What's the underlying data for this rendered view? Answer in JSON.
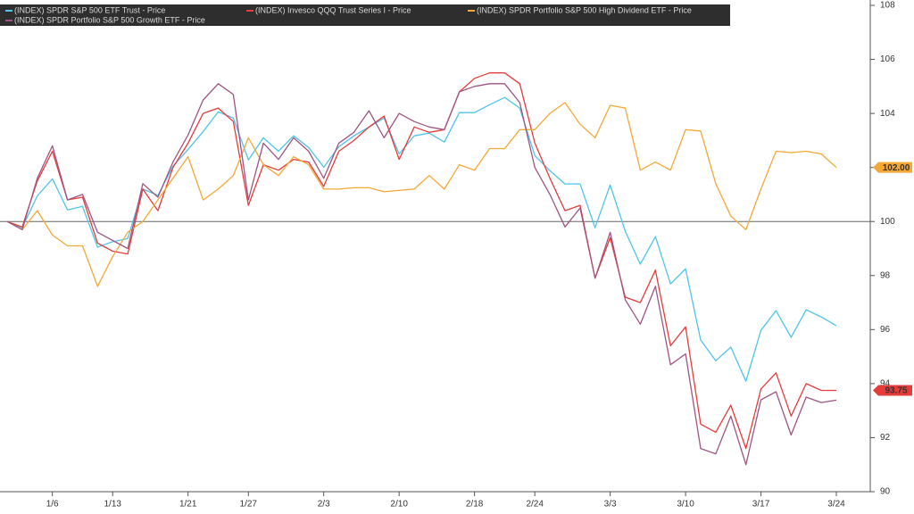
{
  "chart_data": {
    "type": "line",
    "categories": [
      null,
      null,
      null,
      "1/6",
      null,
      null,
      null,
      "1/13",
      null,
      null,
      null,
      null,
      "1/21",
      null,
      null,
      null,
      "1/27",
      null,
      null,
      null,
      null,
      "2/3",
      null,
      null,
      null,
      null,
      "2/10",
      null,
      null,
      null,
      null,
      "2/18",
      null,
      null,
      null,
      "2/24",
      null,
      null,
      null,
      null,
      "3/3",
      null,
      null,
      null,
      null,
      "3/10",
      null,
      null,
      null,
      null,
      "3/17",
      null,
      null,
      null,
      null,
      "3/24"
    ],
    "series": [
      {
        "name": "(INDEX) SPDR S&P 500 ETF Trust - Price",
        "color": "#4ec5ea",
        "values": [
          100,
          99.77,
          100.95,
          101.58,
          100.43,
          100.56,
          99.05,
          99.25,
          99.37,
          101.2,
          100.97,
          102.05,
          102.67,
          103.33,
          104.06,
          103.83,
          102.28,
          103.1,
          102.6,
          103.17,
          102.74,
          102.01,
          102.77,
          103.17,
          103.5,
          103.83,
          102.5,
          103.17,
          103.27,
          102.94,
          104.03,
          104.03,
          104.32,
          104.59,
          104.2,
          102.44,
          101.88,
          101.39,
          101.39,
          99.77,
          101.35,
          99.64,
          98.42,
          99.44,
          97.69,
          98.25,
          95.61,
          94.85,
          95.35,
          94.09,
          95.97,
          96.7,
          95.71,
          96.73,
          96.47,
          96.14
        ]
      },
      {
        "name": "(INDEX) Invesco QQQ Trust Series I - Price",
        "color": "#e63b3b",
        "values": [
          100,
          99.8,
          101.5,
          102.6,
          100.8,
          100.9,
          99.2,
          98.9,
          98.8,
          101.2,
          100.4,
          102.0,
          102.9,
          104.0,
          104.2,
          103.7,
          100.6,
          102.1,
          101.9,
          102.3,
          102.2,
          101.3,
          102.6,
          103.0,
          103.5,
          103.9,
          102.3,
          103.5,
          103.3,
          103.4,
          104.8,
          105.3,
          105.5,
          105.5,
          105.1,
          102.9,
          101.6,
          100.4,
          100.6,
          97.9,
          99.4,
          97.2,
          97.0,
          98.2,
          95.4,
          96.1,
          92.5,
          92.2,
          93.2,
          91.6,
          93.8,
          94.4,
          92.8,
          94.0,
          93.75,
          93.75
        ],
        "value_labels": [
          null,
          null,
          null,
          null,
          null,
          null,
          null,
          null,
          null,
          null,
          null,
          null,
          null,
          null,
          null,
          null,
          null,
          null,
          null,
          null,
          null,
          null,
          null,
          null,
          null,
          null,
          null,
          null,
          null,
          null,
          null,
          null,
          null,
          null,
          null,
          null,
          null,
          null,
          null,
          null,
          null,
          null,
          null,
          null,
          null,
          null,
          null,
          null,
          null,
          null,
          null,
          null,
          null,
          null,
          null,
          "93.75"
        ]
      },
      {
        "name": "(INDEX) SPDR Portfolio S&P 500 High Dividend ETF - Price",
        "color": "#f4a836",
        "values": [
          100,
          99.7,
          100.4,
          99.5,
          99.1,
          99.1,
          97.6,
          98.7,
          99.6,
          100.0,
          100.8,
          101.6,
          102.4,
          100.8,
          101.2,
          101.7,
          103.1,
          102.1,
          101.7,
          102.4,
          102.1,
          101.2,
          101.2,
          101.25,
          101.25,
          101.1,
          101.15,
          101.2,
          101.7,
          101.2,
          102.1,
          101.9,
          102.7,
          102.7,
          103.4,
          103.4,
          104.0,
          104.4,
          103.6,
          103.1,
          104.3,
          104.2,
          101.9,
          102.2,
          101.9,
          103.4,
          103.35,
          101.4,
          100.2,
          99.7,
          101.2,
          102.6,
          102.55,
          102.6,
          102.5,
          102.0
        ],
        "value_labels": [
          null,
          null,
          null,
          null,
          null,
          null,
          null,
          null,
          null,
          null,
          null,
          null,
          null,
          null,
          null,
          null,
          null,
          null,
          null,
          null,
          null,
          null,
          null,
          null,
          null,
          null,
          null,
          null,
          null,
          null,
          null,
          null,
          null,
          null,
          null,
          null,
          null,
          null,
          null,
          null,
          null,
          null,
          null,
          null,
          null,
          null,
          null,
          null,
          null,
          null,
          null,
          null,
          null,
          null,
          null,
          "102.00"
        ]
      },
      {
        "name": "(INDEX) SPDR Portfolio S&P 500 Growth ETF - Price",
        "color": "#9e5582",
        "values": [
          100,
          99.7,
          101.6,
          102.8,
          100.8,
          101.0,
          99.6,
          99.3,
          99.0,
          101.4,
          100.9,
          102.2,
          103.2,
          104.5,
          105.1,
          104.7,
          100.8,
          102.9,
          102.3,
          103.1,
          102.6,
          101.6,
          102.9,
          103.3,
          104.1,
          103.1,
          104.0,
          103.7,
          103.5,
          103.4,
          104.8,
          105.0,
          105.1,
          105.1,
          104.4,
          102.0,
          101.0,
          99.8,
          100.5,
          97.9,
          99.6,
          97.1,
          96.2,
          97.6,
          94.7,
          95.1,
          91.6,
          91.4,
          92.8,
          91.0,
          93.4,
          93.7,
          92.1,
          93.5,
          93.3,
          93.39
        ]
      }
    ],
    "ylim": [
      90,
      108
    ],
    "yticks": [
      90,
      92,
      94,
      96,
      98,
      100,
      102,
      104,
      106,
      108
    ],
    "y_axis_side": "right",
    "reference_line": 100,
    "grid": false,
    "legend": "top-left"
  }
}
